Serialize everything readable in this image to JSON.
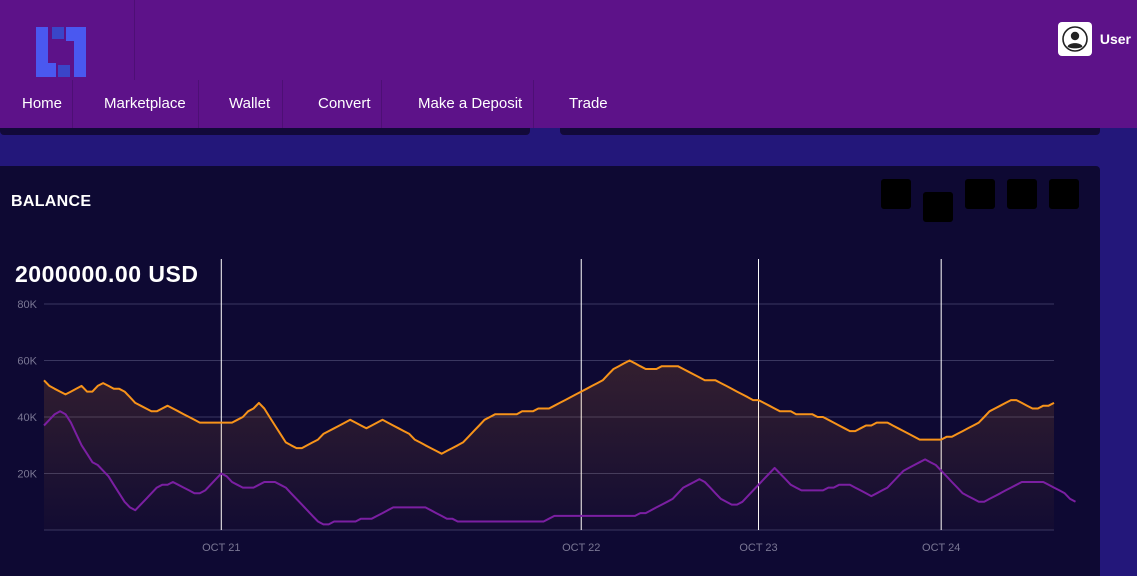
{
  "header": {
    "logo_icon": "brand-logo-icon",
    "user_icon": "user-avatar-icon",
    "user_label": "User"
  },
  "nav": {
    "items": [
      {
        "label": "Home"
      },
      {
        "label": "Marketplace"
      },
      {
        "label": "Wallet"
      },
      {
        "label": "Convert"
      },
      {
        "label": "Make a Deposit"
      },
      {
        "label": "Trade"
      }
    ]
  },
  "balance": {
    "title": "BALANCE",
    "amount": "2000000.00 USD"
  },
  "colors": {
    "accent": "#5d1289",
    "series_orange": "#f7931a",
    "series_purple": "#7b1fa2",
    "panel_bg": "#0e0933"
  },
  "chart_data": {
    "type": "line",
    "ylim": [
      0,
      80000
    ],
    "y_ticks": [
      {
        "value": 20000,
        "label": "20K"
      },
      {
        "value": 40000,
        "label": "40K"
      },
      {
        "value": 60000,
        "label": "60K"
      },
      {
        "value": 80000,
        "label": "80K"
      }
    ],
    "x_ticks": [
      {
        "index": 33,
        "label": "OCT 21"
      },
      {
        "index": 100,
        "label": "OCT 22"
      },
      {
        "index": 133,
        "label": "OCT 23"
      },
      {
        "index": 167,
        "label": "OCT 24"
      }
    ],
    "grid": true,
    "legend": "none",
    "series": [
      {
        "color": "#f7931a",
        "values": [
          53000,
          51000,
          50000,
          49000,
          48000,
          49000,
          50000,
          51000,
          49000,
          49000,
          51000,
          52000,
          51000,
          50000,
          50000,
          49000,
          47000,
          45000,
          44000,
          43000,
          42000,
          42000,
          43000,
          44000,
          43000,
          42000,
          41000,
          40000,
          39000,
          38000,
          38000,
          38000,
          38000,
          38000,
          38000,
          38000,
          39000,
          40000,
          42000,
          43000,
          45000,
          43000,
          40000,
          37000,
          34000,
          31000,
          30000,
          29000,
          29000,
          30000,
          31000,
          32000,
          34000,
          35000,
          36000,
          37000,
          38000,
          39000,
          38000,
          37000,
          36000,
          37000,
          38000,
          39000,
          38000,
          37000,
          36000,
          35000,
          34000,
          32000,
          31000,
          30000,
          29000,
          28000,
          27000,
          28000,
          29000,
          30000,
          31000,
          33000,
          35000,
          37000,
          39000,
          40000,
          41000,
          41000,
          41000,
          41000,
          41000,
          42000,
          42000,
          42000,
          43000,
          43000,
          43000,
          44000,
          45000,
          46000,
          47000,
          48000,
          49000,
          50000,
          51000,
          52000,
          53000,
          55000,
          57000,
          58000,
          59000,
          60000,
          59000,
          58000,
          57000,
          57000,
          57000,
          58000,
          58000,
          58000,
          58000,
          57000,
          56000,
          55000,
          54000,
          53000,
          53000,
          53000,
          52000,
          51000,
          50000,
          49000,
          48000,
          47000,
          46000,
          46000,
          45000,
          44000,
          43000,
          42000,
          42000,
          42000,
          41000,
          41000,
          41000,
          41000,
          40000,
          40000,
          39000,
          38000,
          37000,
          36000,
          35000,
          35000,
          36000,
          37000,
          37000,
          38000,
          38000,
          38000,
          37000,
          36000,
          35000,
          34000,
          33000,
          32000,
          32000,
          32000,
          32000,
          32000,
          33000,
          33000,
          34000,
          35000,
          36000,
          37000,
          38000,
          40000,
          42000,
          43000,
          44000,
          45000,
          46000,
          46000,
          45000,
          44000,
          43000,
          43000,
          44000,
          44000,
          45000
        ]
      },
      {
        "color": "#7b1fa2",
        "values": [
          37000,
          39000,
          41000,
          42000,
          41000,
          38000,
          34000,
          30000,
          27000,
          24000,
          23000,
          21000,
          19000,
          16000,
          13000,
          10000,
          8000,
          7000,
          9000,
          11000,
          13000,
          15000,
          16000,
          16000,
          17000,
          16000,
          15000,
          14000,
          13000,
          13000,
          14000,
          16000,
          18000,
          20000,
          19000,
          17000,
          16000,
          15000,
          15000,
          15000,
          16000,
          17000,
          17000,
          17000,
          16000,
          15000,
          13000,
          11000,
          9000,
          7000,
          5000,
          3000,
          2000,
          2000,
          3000,
          3000,
          3000,
          3000,
          3000,
          4000,
          4000,
          4000,
          5000,
          6000,
          7000,
          8000,
          8000,
          8000,
          8000,
          8000,
          8000,
          8000,
          7000,
          6000,
          5000,
          4000,
          4000,
          3000,
          3000,
          3000,
          3000,
          3000,
          3000,
          3000,
          3000,
          3000,
          3000,
          3000,
          3000,
          3000,
          3000,
          3000,
          3000,
          3000,
          4000,
          5000,
          5000,
          5000,
          5000,
          5000,
          5000,
          5000,
          5000,
          5000,
          5000,
          5000,
          5000,
          5000,
          5000,
          5000,
          5000,
          6000,
          6000,
          7000,
          8000,
          9000,
          10000,
          11000,
          13000,
          15000,
          16000,
          17000,
          18000,
          17000,
          15000,
          13000,
          11000,
          10000,
          9000,
          9000,
          10000,
          12000,
          14000,
          16000,
          18000,
          20000,
          22000,
          20000,
          18000,
          16000,
          15000,
          14000,
          14000,
          14000,
          14000,
          14000,
          15000,
          15000,
          16000,
          16000,
          16000,
          15000,
          14000,
          13000,
          12000,
          13000,
          14000,
          15000,
          17000,
          19000,
          21000,
          22000,
          23000,
          24000,
          25000,
          24000,
          23000,
          21000,
          19000,
          17000,
          15000,
          13000,
          12000,
          11000,
          10000,
          10000,
          11000,
          12000,
          13000,
          14000,
          15000,
          16000,
          17000,
          17000,
          17000,
          17000,
          17000,
          16000,
          15000,
          14000,
          13000,
          11000,
          10000
        ]
      }
    ]
  }
}
